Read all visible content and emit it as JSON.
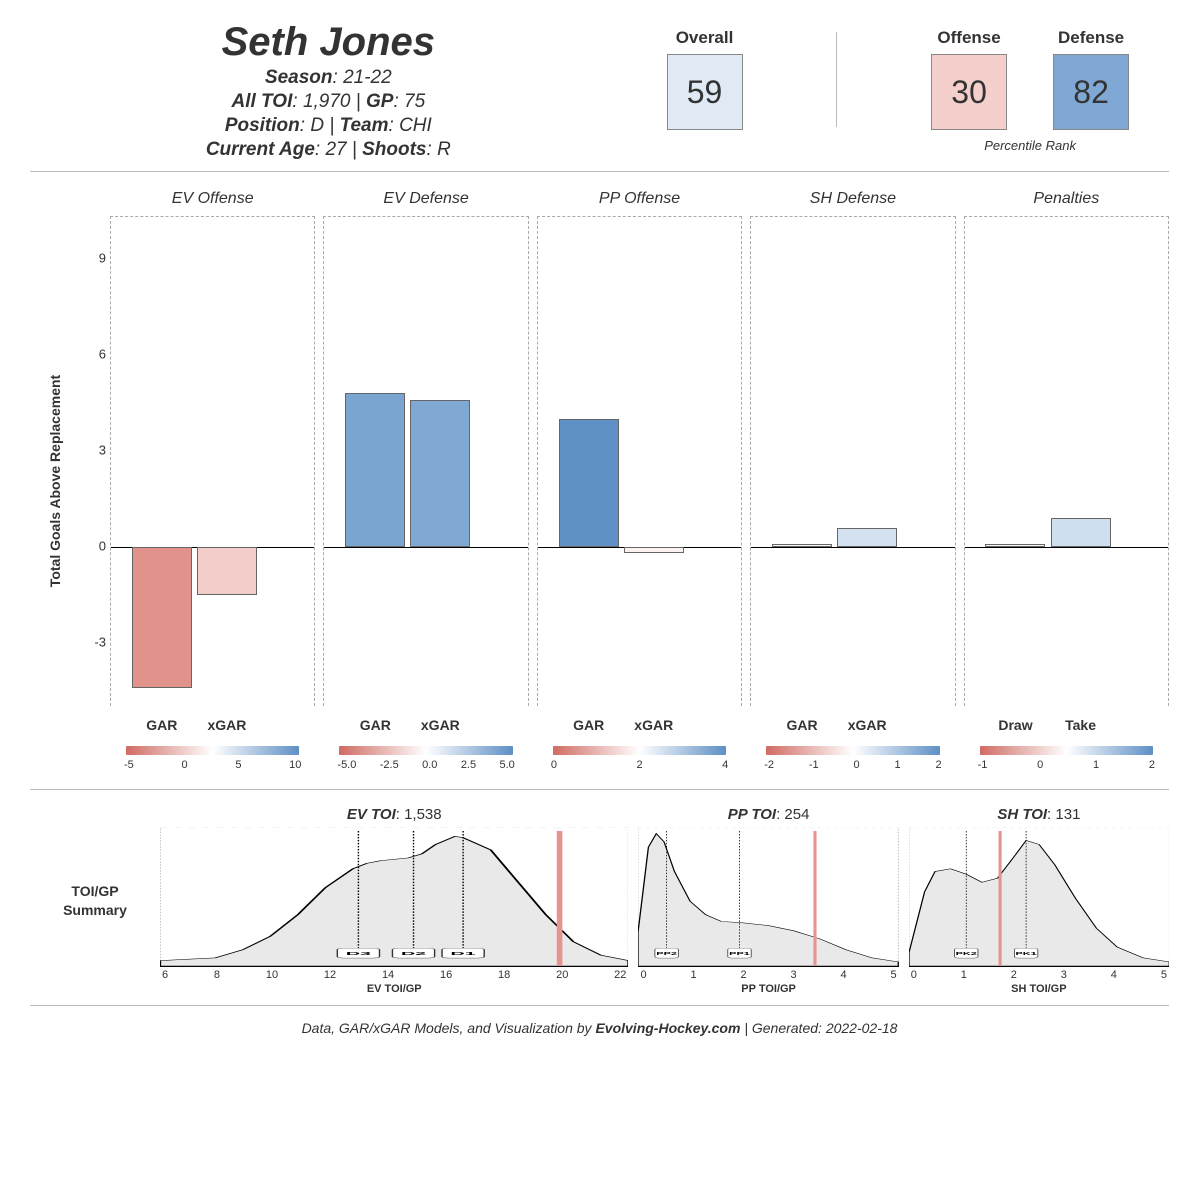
{
  "player": {
    "name": "Seth Jones",
    "season_label": "Season",
    "season": "21-22",
    "all_toi_label": "All TOI",
    "all_toi": "1,970",
    "gp_label": "GP",
    "gp": "75",
    "position_label": "Position",
    "position": "D",
    "team_label": "Team",
    "team": "CHI",
    "age_label": "Current Age",
    "age": "27",
    "shoots_label": "Shoots",
    "shoots": "R"
  },
  "ranks": {
    "percentile_label": "Percentile Rank",
    "cells": [
      {
        "label": "Overall",
        "value": "59",
        "bg": "#dfeaf4"
      },
      {
        "label": "Offense",
        "value": "30",
        "bg": "#f4cfcc"
      },
      {
        "label": "Defense",
        "value": "82",
        "bg": "#7fa9d4"
      }
    ]
  },
  "gar_chart": {
    "ylabel": "Total Goals Above Replacement",
    "ymin": -5.0,
    "ymax": 10.3,
    "yticks": [
      -3,
      0,
      3,
      6,
      9
    ],
    "bar_label_fontsize": 14,
    "panels": [
      {
        "title": "EV Offense",
        "bars": [
          {
            "label": "GAR",
            "value": -4.4,
            "color": "#e1938b"
          },
          {
            "label": "xGAR",
            "value": -1.5,
            "color": "#f3cdc9"
          }
        ],
        "grad_stops": [
          "#d06b63",
          "#ffffff",
          "#5e8fc5"
        ],
        "grad_ticks": [
          "-5",
          "0",
          "5",
          "10"
        ]
      },
      {
        "title": "EV Defense",
        "bars": [
          {
            "label": "GAR",
            "value": 4.8,
            "color": "#7aa5d0"
          },
          {
            "label": "xGAR",
            "value": 4.6,
            "color": "#7fa9d2"
          }
        ],
        "grad_stops": [
          "#d06b63",
          "#ffffff",
          "#5e8fc5"
        ],
        "grad_ticks": [
          "-5.0",
          "-2.5",
          "0.0",
          "2.5",
          "5.0"
        ]
      },
      {
        "title": "PP Offense",
        "bars": [
          {
            "label": "GAR",
            "value": 4.0,
            "color": "#5f91c6"
          },
          {
            "label": "xGAR",
            "value": -0.2,
            "color": "#fbf2f1"
          }
        ],
        "grad_stops": [
          "#d06b63",
          "#ffffff",
          "#5e8fc5"
        ],
        "grad_ticks": [
          "0",
          "2",
          "4"
        ]
      },
      {
        "title": "SH Defense",
        "bars": [
          {
            "label": "GAR",
            "value": 0.1,
            "color": "#f4f7fb"
          },
          {
            "label": "xGAR",
            "value": 0.6,
            "color": "#d3e1f0"
          }
        ],
        "grad_stops": [
          "#d06b63",
          "#ffffff",
          "#5e8fc5"
        ],
        "grad_ticks": [
          "-2",
          "-1",
          "0",
          "1",
          "2"
        ]
      },
      {
        "title": "Penalties",
        "bars": [
          {
            "label": "Draw",
            "value": 0.1,
            "color": "#f7f9fc"
          },
          {
            "label": "Take",
            "value": 0.9,
            "color": "#d0dff0"
          }
        ],
        "grad_stops": [
          "#d06b63",
          "#ffffff",
          "#5e8fc5"
        ],
        "grad_ticks": [
          "-1",
          "0",
          "1",
          "2"
        ]
      }
    ]
  },
  "toi": {
    "section_label": "TOI/GP\nSummary",
    "panels": [
      {
        "title_label": "EV TOI",
        "title_value": "1,538",
        "axis": "EV TOI/GP",
        "xmin": 6,
        "xmax": 23,
        "ticks": [
          "6",
          "8",
          "10",
          "12",
          "14",
          "16",
          "18",
          "20",
          "22"
        ],
        "flex": 1.8,
        "marker": 20.5,
        "dashes": [
          {
            "x": 13.2,
            "label": "D3"
          },
          {
            "x": 15.2,
            "label": "D2"
          },
          {
            "x": 17.0,
            "label": "D1"
          }
        ],
        "curve": [
          [
            6,
            0.04
          ],
          [
            7,
            0.05
          ],
          [
            8,
            0.06
          ],
          [
            9,
            0.12
          ],
          [
            10,
            0.22
          ],
          [
            11,
            0.38
          ],
          [
            12,
            0.58
          ],
          [
            13,
            0.72
          ],
          [
            13.5,
            0.76
          ],
          [
            14,
            0.78
          ],
          [
            15,
            0.8
          ],
          [
            15.5,
            0.83
          ],
          [
            16,
            0.9
          ],
          [
            16.7,
            0.96
          ],
          [
            17,
            0.95
          ],
          [
            18,
            0.86
          ],
          [
            19,
            0.62
          ],
          [
            20,
            0.38
          ],
          [
            21,
            0.18
          ],
          [
            22,
            0.08
          ],
          [
            23,
            0.04
          ]
        ]
      },
      {
        "title_label": "PP TOI",
        "title_value": "254",
        "axis": "PP TOI/GP",
        "xmin": 0,
        "xmax": 5,
        "ticks": [
          "0",
          "1",
          "2",
          "3",
          "4",
          "5"
        ],
        "flex": 1,
        "marker": 3.4,
        "dashes": [
          {
            "x": 0.55,
            "label": "PP2"
          },
          {
            "x": 1.95,
            "label": "PP1"
          }
        ],
        "curve": [
          [
            0,
            0.25
          ],
          [
            0.2,
            0.88
          ],
          [
            0.35,
            0.98
          ],
          [
            0.5,
            0.92
          ],
          [
            0.7,
            0.7
          ],
          [
            1.0,
            0.48
          ],
          [
            1.3,
            0.38
          ],
          [
            1.6,
            0.33
          ],
          [
            2.0,
            0.32
          ],
          [
            2.5,
            0.3
          ],
          [
            3.0,
            0.26
          ],
          [
            3.5,
            0.2
          ],
          [
            4.0,
            0.12
          ],
          [
            4.5,
            0.06
          ],
          [
            5.0,
            0.03
          ]
        ]
      },
      {
        "title_label": "SH TOI",
        "title_value": "131",
        "axis": "SH TOI/GP",
        "xmin": 0,
        "xmax": 5,
        "ticks": [
          "0",
          "1",
          "2",
          "3",
          "4",
          "5"
        ],
        "flex": 1,
        "marker": 1.75,
        "dashes": [
          {
            "x": 1.1,
            "label": "PK2"
          },
          {
            "x": 2.25,
            "label": "PK1"
          }
        ],
        "curve": [
          [
            0,
            0.1
          ],
          [
            0.3,
            0.55
          ],
          [
            0.5,
            0.7
          ],
          [
            0.8,
            0.72
          ],
          [
            1.1,
            0.68
          ],
          [
            1.4,
            0.62
          ],
          [
            1.7,
            0.65
          ],
          [
            2.0,
            0.8
          ],
          [
            2.25,
            0.93
          ],
          [
            2.5,
            0.9
          ],
          [
            2.8,
            0.75
          ],
          [
            3.2,
            0.5
          ],
          [
            3.6,
            0.28
          ],
          [
            4.0,
            0.14
          ],
          [
            4.5,
            0.06
          ],
          [
            5.0,
            0.03
          ]
        ]
      }
    ]
  },
  "footer": {
    "prefix": "Data, GAR/xGAR Models, and Visualization by ",
    "site": "Evolving-Hockey.com",
    "gen_label": "Generated",
    "gen_date": "2022-02-18"
  },
  "colors": {
    "marker": "#e59590",
    "curve_fill": "#e9e9e9",
    "curve_stroke": "#000000"
  }
}
